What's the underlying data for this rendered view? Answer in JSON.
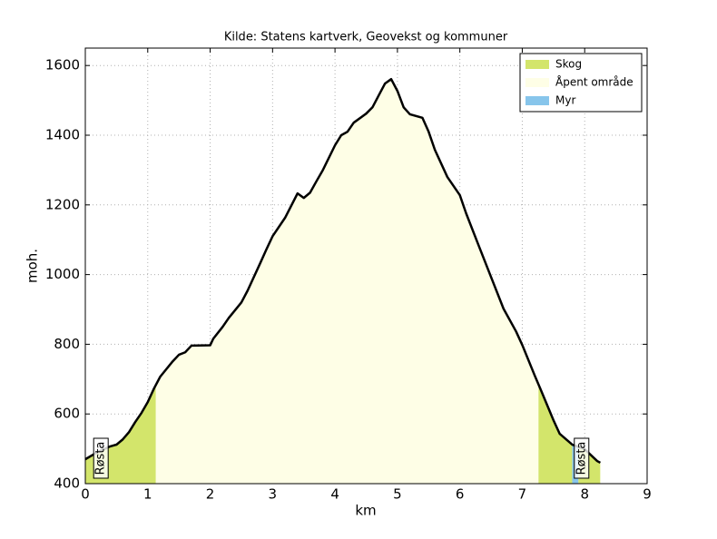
{
  "chart_data": {
    "type": "area",
    "title": "Kilde: Statens kartverk, Geovekst og kommuner",
    "xlabel": "km",
    "ylabel": "moh.",
    "x": [
      0.0,
      0.2,
      0.4,
      0.5,
      0.6,
      0.7,
      0.8,
      0.9,
      1.0,
      1.1,
      1.2,
      1.4,
      1.5,
      1.6,
      1.7,
      2.0,
      2.05,
      2.2,
      2.3,
      2.5,
      2.6,
      2.8,
      2.9,
      3.0,
      3.2,
      3.4,
      3.5,
      3.6,
      3.7,
      3.8,
      4.0,
      4.1,
      4.2,
      4.3,
      4.5,
      4.6,
      4.7,
      4.8,
      4.9,
      5.0,
      5.1,
      5.2,
      5.4,
      5.5,
      5.6,
      5.8,
      6.0,
      6.1,
      6.3,
      6.5,
      6.7,
      6.9,
      7.0,
      7.2,
      7.3,
      7.5,
      7.6,
      7.8,
      8.0,
      8.2,
      8.25
    ],
    "values": [
      470,
      491,
      507,
      512,
      527,
      548,
      577,
      603,
      634,
      673,
      707,
      751,
      770,
      777,
      796,
      797,
      816,
      850,
      876,
      920,
      954,
      1032,
      1072,
      1110,
      1163,
      1233,
      1220,
      1235,
      1267,
      1298,
      1371,
      1400,
      1410,
      1436,
      1462,
      1480,
      1514,
      1548,
      1561,
      1527,
      1480,
      1460,
      1450,
      1410,
      1358,
      1280,
      1228,
      1176,
      1084,
      993,
      902,
      837,
      798,
      710,
      668,
      582,
      543,
      512,
      499,
      465,
      460
    ],
    "color": "#000000",
    "series": [
      {
        "name": "Skog",
        "color": "#d3e56b"
      },
      {
        "name": "Åpent område",
        "color": "#fefee6"
      },
      {
        "name": "Myr",
        "color": "#87c5eb"
      }
    ],
    "zones": [
      {
        "cover": 0,
        "from": 0.0,
        "to": 1.13
      },
      {
        "cover": 1,
        "from": 1.13,
        "to": 7.26
      },
      {
        "cover": 0,
        "from": 7.26,
        "to": 7.8
      },
      {
        "cover": 2,
        "from": 7.8,
        "to": 7.9
      },
      {
        "cover": 0,
        "from": 7.9,
        "to": 8.25
      }
    ],
    "annotations": [
      {
        "text": "Røsta",
        "x": 0.25
      },
      {
        "text": "Røsta",
        "x": 7.95
      }
    ],
    "xlim": [
      0,
      9
    ],
    "xticks": [
      0,
      1,
      2,
      3,
      4,
      5,
      6,
      7,
      8,
      9
    ],
    "ylim": [
      400,
      1650
    ],
    "yticks": [
      400,
      600,
      800,
      1000,
      1200,
      1400,
      1600
    ],
    "grid": true,
    "legend": "upper right"
  }
}
